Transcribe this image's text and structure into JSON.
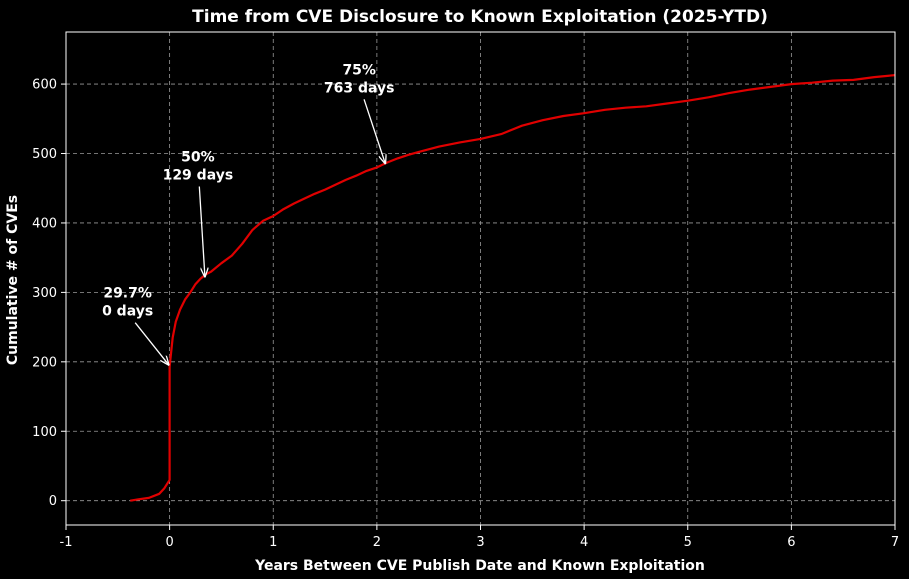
{
  "chart_data": {
    "type": "line",
    "title": "Time from CVE Disclosure to Known Exploitation (2025-YTD)",
    "xlabel": "Years Between CVE Publish Date and Known Exploitation",
    "ylabel": "Cumulative # of CVEs",
    "xlim": [
      -1,
      7
    ],
    "ylim": [
      -35,
      675
    ],
    "xticks": [
      -1,
      0,
      1,
      2,
      3,
      4,
      5,
      6,
      7
    ],
    "yticks": [
      0,
      100,
      200,
      300,
      400,
      500,
      600
    ],
    "grid": true,
    "line_color": "#e00000",
    "series": [
      {
        "x": [
          -0.38,
          -0.3,
          -0.2,
          -0.1,
          -0.05,
          0.0,
          0.0,
          0.0,
          0.03,
          0.06,
          0.1,
          0.15,
          0.2,
          0.25,
          0.3,
          0.35,
          0.4,
          0.5,
          0.6,
          0.7,
          0.8,
          0.9,
          1.0,
          1.1,
          1.2,
          1.3,
          1.4,
          1.5,
          1.6,
          1.7,
          1.8,
          1.9,
          2.0,
          2.1,
          2.2,
          2.3,
          2.4,
          2.6,
          2.8,
          3.0,
          3.2,
          3.4,
          3.6,
          3.8,
          4.0,
          4.2,
          4.4,
          4.6,
          4.8,
          5.0,
          5.2,
          5.4,
          5.6,
          5.8,
          6.0,
          6.2,
          6.4,
          6.6,
          6.8,
          7.0
        ],
        "y": [
          0,
          2,
          4,
          10,
          18,
          30,
          120,
          193,
          235,
          258,
          275,
          290,
          300,
          312,
          320,
          326,
          330,
          342,
          353,
          370,
          390,
          403,
          410,
          420,
          428,
          435,
          442,
          448,
          455,
          462,
          468,
          475,
          480,
          487,
          493,
          498,
          502,
          510,
          516,
          521,
          528,
          540,
          548,
          554,
          558,
          563,
          566,
          568,
          572,
          576,
          581,
          587,
          592,
          596,
          600,
          602,
          605,
          606,
          610,
          613
        ]
      }
    ],
    "annotations": [
      {
        "line1": "29.7%",
        "line2": "0 days",
        "x": 0.0,
        "y": 193
      },
      {
        "line1": "50%",
        "line2": "129 days",
        "x": 0.35,
        "y": 320
      },
      {
        "line1": "75%",
        "line2": "763 days",
        "x": 2.09,
        "y": 483
      }
    ]
  }
}
